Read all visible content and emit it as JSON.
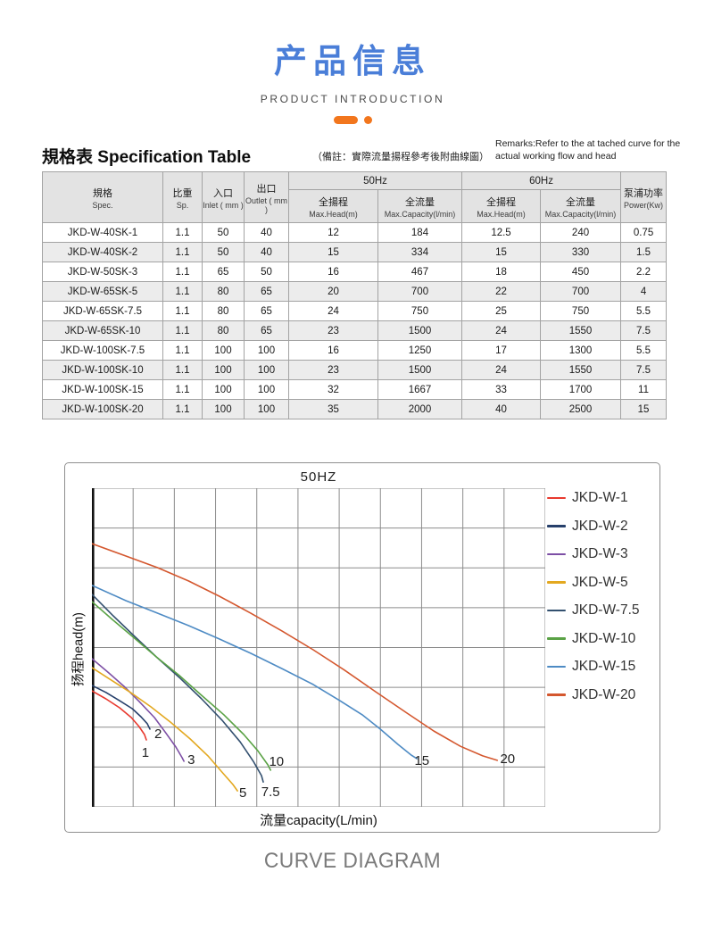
{
  "header": {
    "title": "产品信息",
    "subtitle": "PRODUCT INTRODUCTION"
  },
  "spec_section": {
    "title_cn": "規格表",
    "title_en": "Specification Table",
    "note": "（備註：實際流量揚程參考後附曲線圖）",
    "remarks": "Remarks:Refer to the at tached curve for the actual working flow and head"
  },
  "table": {
    "col_headers": {
      "spec": {
        "cn": "規格",
        "en": "Spec."
      },
      "sp": {
        "cn": "比重",
        "en": "Sp."
      },
      "inlet": {
        "cn": "入口",
        "en": "Inlet ( mm )"
      },
      "outlet": {
        "cn": "出口",
        "en": "Outlet ( mm )"
      },
      "hz50": "50Hz",
      "hz60": "60Hz",
      "head": {
        "cn": "全揚程",
        "en": "Max.Head(m)"
      },
      "capacity": {
        "cn": "全流量",
        "en": "Max.Capacity(l/min)"
      },
      "power": {
        "cn": "泵浦功率",
        "en": "Power(Kw)"
      }
    },
    "rows": [
      [
        "JKD-W-40SK-1",
        "1.1",
        "50",
        "40",
        "12",
        "184",
        "12.5",
        "240",
        "0.75"
      ],
      [
        "JKD-W-40SK-2",
        "1.1",
        "50",
        "40",
        "15",
        "334",
        "15",
        "330",
        "1.5"
      ],
      [
        "JKD-W-50SK-3",
        "1.1",
        "65",
        "50",
        "16",
        "467",
        "18",
        "450",
        "2.2"
      ],
      [
        "JKD-W-65SK-5",
        "1.1",
        "80",
        "65",
        "20",
        "700",
        "22",
        "700",
        "4"
      ],
      [
        "JKD-W-65SK-7.5",
        "1.1",
        "80",
        "65",
        "24",
        "750",
        "25",
        "750",
        "5.5"
      ],
      [
        "JKD-W-65SK-10",
        "1.1",
        "80",
        "65",
        "23",
        "1500",
        "24",
        "1550",
        "7.5"
      ],
      [
        "JKD-W-100SK-7.5",
        "1.1",
        "100",
        "100",
        "16",
        "1250",
        "17",
        "1300",
        "5.5"
      ],
      [
        "JKD-W-100SK-10",
        "1.1",
        "100",
        "100",
        "23",
        "1500",
        "24",
        "1550",
        "7.5"
      ],
      [
        "JKD-W-100SK-15",
        "1.1",
        "100",
        "100",
        "32",
        "1667",
        "33",
        "1700",
        "11"
      ],
      [
        "JKD-W-100SK-20",
        "1.1",
        "100",
        "100",
        "35",
        "2000",
        "40",
        "2500",
        "15"
      ]
    ]
  },
  "chart_data": {
    "type": "line",
    "title": "50HZ",
    "xlabel": "流量capacity(L/min)",
    "ylabel": "扬程head(m)",
    "axis_ticks": "none - unlabeled grid",
    "legend_position": "right",
    "grid": {
      "cols": 11,
      "rows": 8,
      "on": true
    },
    "units": "point coords are percent of plot area, x rightward, y downward (head decreases as capacity increases)",
    "series": [
      {
        "name": "JKD-W-1",
        "color": "#e8392e",
        "points": [
          [
            0,
            63.6
          ],
          [
            3.1,
            66.1
          ],
          [
            6.1,
            68.9
          ],
          [
            8.7,
            72.0
          ],
          [
            10.4,
            74.8
          ],
          [
            11.6,
            77.3
          ],
          [
            12.0,
            79.0
          ]
        ],
        "end_label": {
          "text": "1",
          "x": 11.8,
          "y": 83.2
        }
      },
      {
        "name": "JKD-W-2",
        "color": "#27406b",
        "points": [
          [
            0,
            61.9
          ],
          [
            3.1,
            64.1
          ],
          [
            6.1,
            66.7
          ],
          [
            8.9,
            69.2
          ],
          [
            10.8,
            71.7
          ],
          [
            12.2,
            73.9
          ],
          [
            12.8,
            75.6
          ]
        ],
        "end_label": {
          "text": "2",
          "x": 14.6,
          "y": 77.3
        }
      },
      {
        "name": "JKD-W-3",
        "color": "#7d4fa5",
        "points": [
          [
            0,
            53.5
          ],
          [
            3.5,
            57.7
          ],
          [
            7.1,
            62.2
          ],
          [
            10.4,
            66.9
          ],
          [
            13.8,
            72.0
          ],
          [
            16.3,
            76.8
          ],
          [
            18.5,
            81.2
          ],
          [
            19.9,
            84.6
          ],
          [
            20.3,
            85.7
          ]
        ],
        "end_label": {
          "text": "3",
          "x": 21.9,
          "y": 85.4
        }
      },
      {
        "name": "JKD-W-5",
        "color": "#e3a820",
        "points": [
          [
            0,
            56.3
          ],
          [
            3.9,
            59.9
          ],
          [
            8.5,
            64.1
          ],
          [
            13.0,
            68.6
          ],
          [
            17.3,
            73.4
          ],
          [
            21.7,
            78.7
          ],
          [
            25.6,
            84.0
          ],
          [
            28.7,
            89.1
          ],
          [
            31.1,
            93.0
          ],
          [
            32.1,
            95.0
          ]
        ],
        "end_label": {
          "text": "5",
          "x": 33.3,
          "y": 95.8
        }
      },
      {
        "name": "JKD-W-7.5",
        "color": "#33506f",
        "points": [
          [
            0,
            33.3
          ],
          [
            4.5,
            39.8
          ],
          [
            9.4,
            46.5
          ],
          [
            14.4,
            53.2
          ],
          [
            19.3,
            59.4
          ],
          [
            24.2,
            66.1
          ],
          [
            28.7,
            72.8
          ],
          [
            32.7,
            79.6
          ],
          [
            35.6,
            85.7
          ],
          [
            37.4,
            90.2
          ],
          [
            37.8,
            92.2
          ]
        ],
        "end_label": {
          "text": "7.5",
          "x": 39.4,
          "y": 95.5
        }
      },
      {
        "name": "JKD-W-10",
        "color": "#5aa245",
        "points": [
          [
            0,
            35.6
          ],
          [
            4.5,
            41.2
          ],
          [
            9.4,
            47.1
          ],
          [
            14.4,
            53.2
          ],
          [
            19.3,
            58.8
          ],
          [
            24.2,
            65.0
          ],
          [
            29.1,
            71.1
          ],
          [
            33.5,
            77.3
          ],
          [
            36.6,
            82.4
          ],
          [
            38.8,
            86.8
          ],
          [
            39.4,
            88.5
          ]
        ],
        "end_label": {
          "text": "10",
          "x": 40.7,
          "y": 86.0
        }
      },
      {
        "name": "JKD-W-15",
        "color": "#4e8bc4",
        "points": [
          [
            0,
            30.5
          ],
          [
            7.5,
            35.3
          ],
          [
            14.4,
            39.2
          ],
          [
            21.3,
            43.1
          ],
          [
            28.1,
            47.3
          ],
          [
            35.0,
            51.8
          ],
          [
            41.9,
            56.6
          ],
          [
            48.8,
            61.6
          ],
          [
            54.7,
            66.7
          ],
          [
            59.6,
            71.1
          ],
          [
            63.6,
            75.6
          ],
          [
            67.5,
            80.4
          ],
          [
            70.5,
            83.8
          ],
          [
            71.7,
            84.9
          ]
        ],
        "end_label": {
          "text": "15",
          "x": 72.8,
          "y": 85.7
        }
      },
      {
        "name": "JKD-W-20",
        "color": "#d4572e",
        "points": [
          [
            0,
            17.4
          ],
          [
            7.5,
            21.3
          ],
          [
            14.4,
            24.9
          ],
          [
            21.3,
            29.1
          ],
          [
            28.1,
            33.9
          ],
          [
            35.0,
            39.2
          ],
          [
            41.9,
            44.8
          ],
          [
            48.8,
            50.7
          ],
          [
            55.7,
            57.1
          ],
          [
            62.6,
            63.9
          ],
          [
            69.5,
            70.6
          ],
          [
            75.4,
            76.2
          ],
          [
            81.3,
            81.0
          ],
          [
            86.2,
            84.0
          ],
          [
            89.4,
            85.4
          ]
        ],
        "end_label": {
          "text": "20",
          "x": 91.7,
          "y": 85.2
        }
      }
    ]
  },
  "footer": {
    "caption": "CURVE DIAGRAM"
  },
  "colors": {
    "title_blue": "#4a7ed8",
    "accent_orange": "#f2761d",
    "table_header_bg": "#e3e3e3",
    "table_row_alt_bg": "#ececec",
    "table_border": "#a3a3a3",
    "grid_line": "#8c8c8c",
    "caption_gray": "#7a7a7a"
  }
}
